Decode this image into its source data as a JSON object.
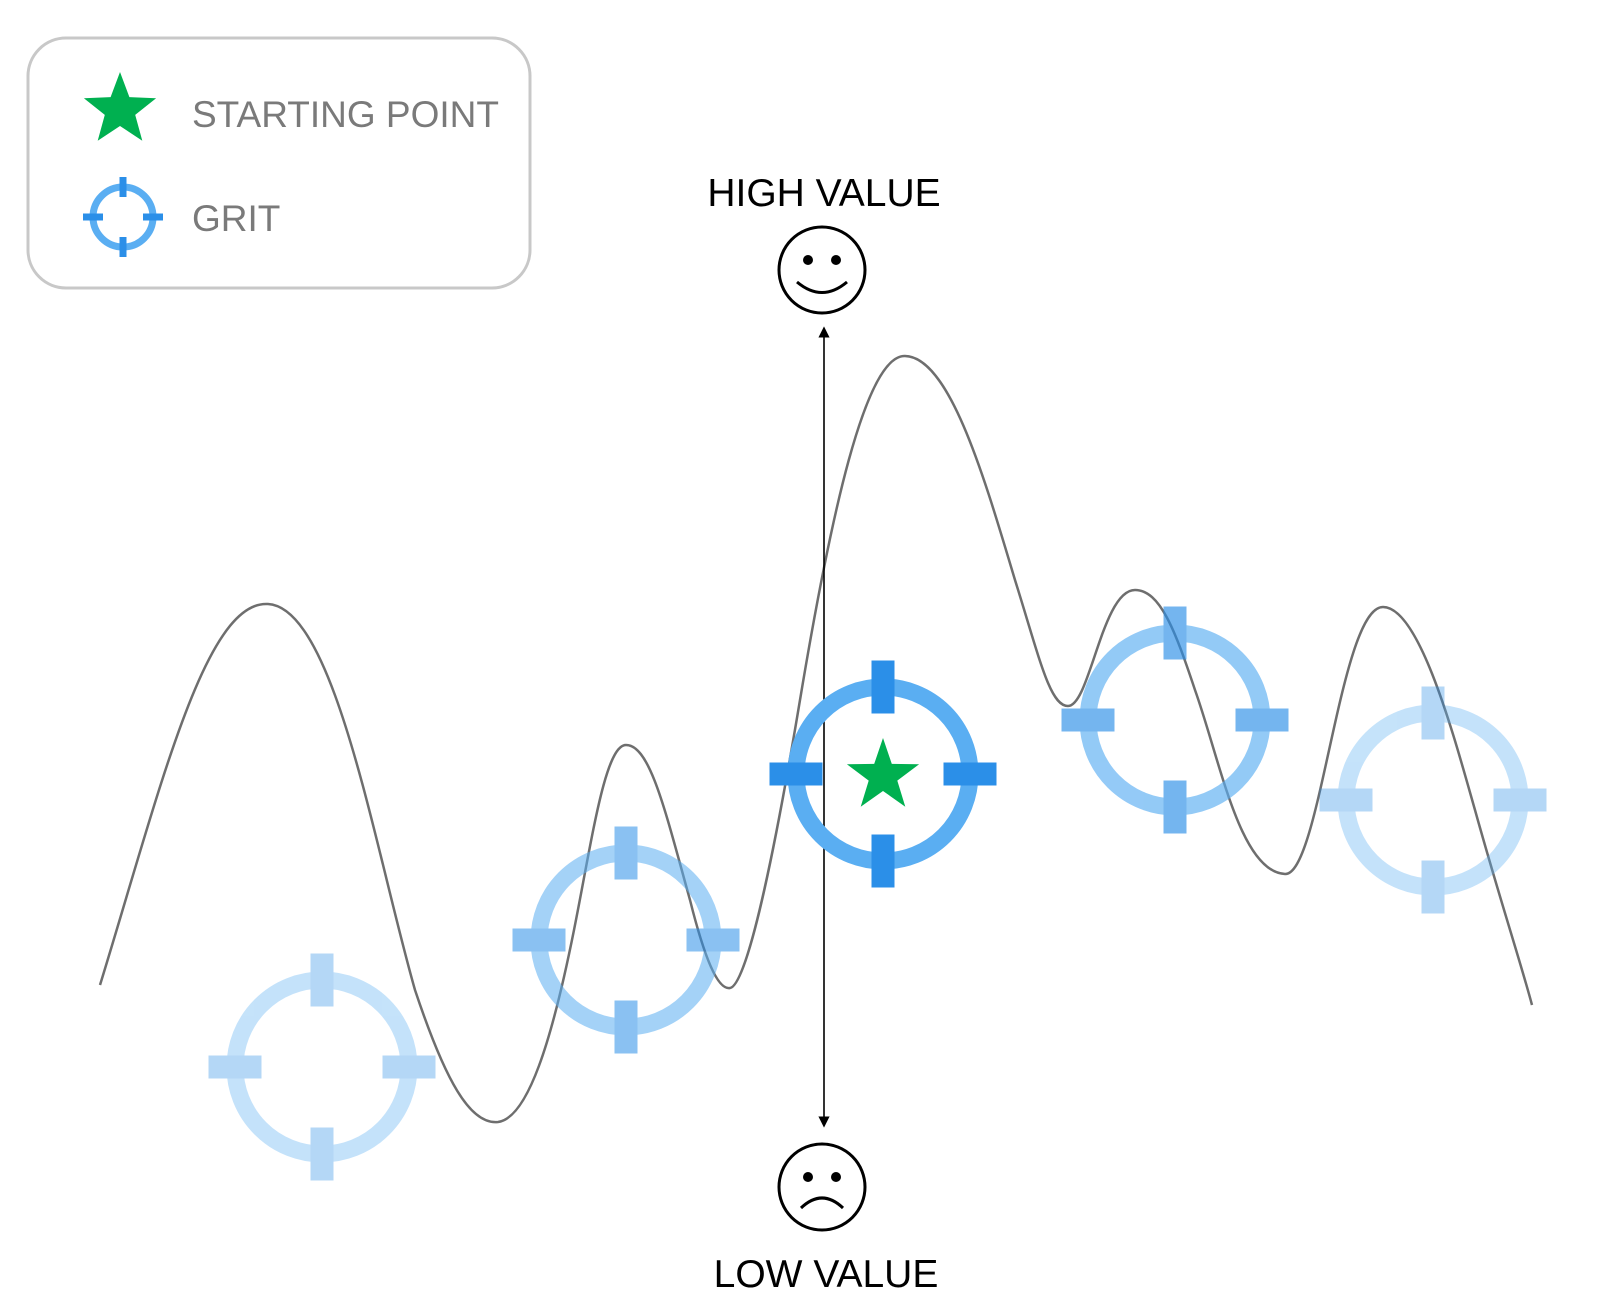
{
  "legend": {
    "items": [
      {
        "label": "STARTING POINT",
        "icon": "star-icon",
        "color": "#00b050"
      },
      {
        "label": "GRIT",
        "icon": "crosshair-icon",
        "color": "#2b8fe8"
      }
    ],
    "border_color": "#c0c0c0",
    "text_color": "#7a7a7a"
  },
  "axis": {
    "high_label": "HIGH VALUE",
    "low_label": "LOW VALUE",
    "high_icon": "smiley-face-icon",
    "low_icon": "frowning-face-icon"
  },
  "colors": {
    "curve": "#6e6e6e",
    "crosshair": "#2b8fe8",
    "ring": "#5aaef2",
    "star": "#00b050"
  },
  "crosshairs": [
    {
      "id": "crosshair-1",
      "opacity": 0.35
    },
    {
      "id": "crosshair-2",
      "opacity": 0.55
    },
    {
      "id": "crosshair-3",
      "opacity": 1.0,
      "starting_point": true
    },
    {
      "id": "crosshair-4",
      "opacity": 0.65
    },
    {
      "id": "crosshair-5",
      "opacity": 0.35
    }
  ]
}
